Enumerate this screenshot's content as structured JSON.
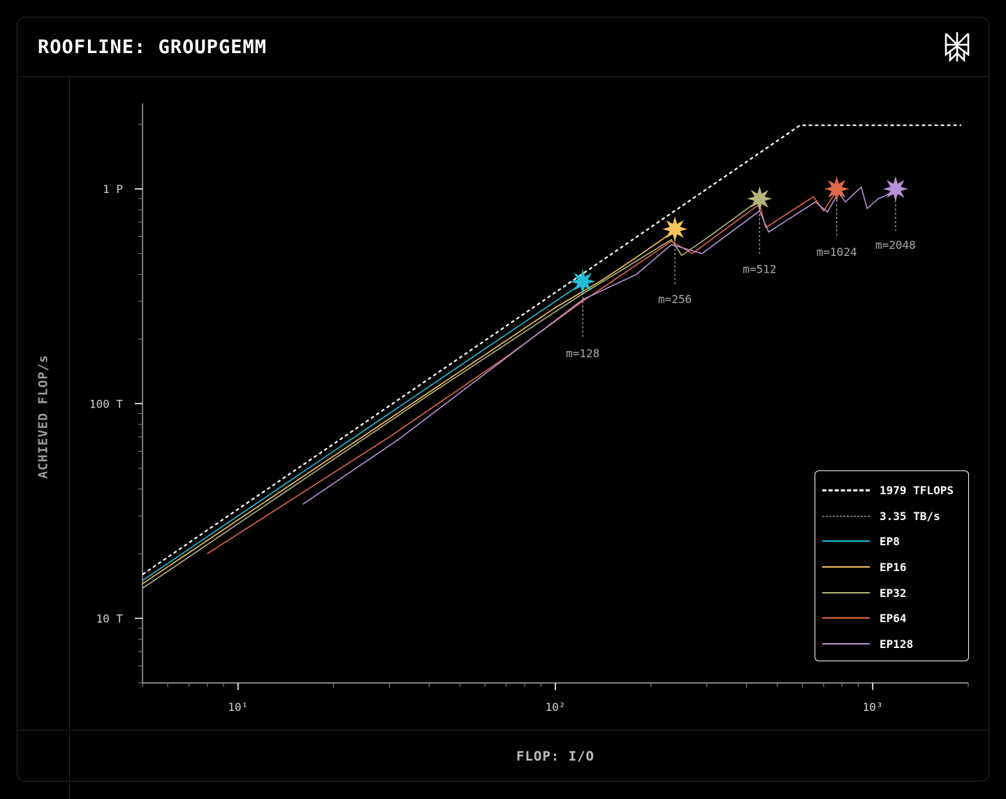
{
  "header": {
    "title": "ROOFLINE: GROUPGEMM",
    "logo_icon": "perplexity-logo-icon"
  },
  "chart_data": {
    "type": "line",
    "xlabel": "FLOP: I/O",
    "ylabel": "ACHIEVED FLOP/s",
    "x_scale": "log",
    "y_scale": "log",
    "xlim": [
      5,
      2000
    ],
    "ylim": [
      5000000000000.0,
      2500000000000000.0
    ],
    "x_ticks": [
      {
        "value": 10,
        "label": "10¹"
      },
      {
        "value": 100,
        "label": "10²"
      },
      {
        "value": 1000,
        "label": "10³"
      }
    ],
    "y_ticks": [
      {
        "value": 10000000000000.0,
        "label": "10 T"
      },
      {
        "value": 100000000000000.0,
        "label": "100 T"
      },
      {
        "value": 1000000000000000.0,
        "label": "1 P"
      }
    ],
    "grid": false,
    "legend_position": "bottom-right",
    "roofline": {
      "peak_compute": {
        "name": "1979 TFLOPS",
        "value": 1979000000000000.0
      },
      "memory_bandwidth": {
        "name": "3.35 TB/s",
        "value": 3350000000000.0
      },
      "points": [
        [
          5,
          16000000000000.0
        ],
        [
          590,
          1979000000000000.0
        ],
        [
          1900,
          1979000000000000.0
        ]
      ]
    },
    "series": [
      {
        "name": "EP8",
        "color": "#22bcd8",
        "points": [
          [
            5,
            15000000000000.0
          ],
          [
            20,
            60000000000000.0
          ],
          [
            60,
            180000000000000.0
          ],
          [
            122,
            365000000000000.0
          ]
        ]
      },
      {
        "name": "EP16",
        "color": "#f5c65b",
        "points": [
          [
            5,
            14500000000000.0
          ],
          [
            30,
            85000000000000.0
          ],
          [
            100,
            280000000000000.0
          ],
          [
            140,
            375000000000000.0
          ],
          [
            180,
            480000000000000.0
          ],
          [
            238,
            640000000000000.0
          ]
        ]
      },
      {
        "name": "EP32",
        "color": "#b5b27c",
        "points": [
          [
            5,
            13800000000000.0
          ],
          [
            40,
            110000000000000.0
          ],
          [
            120,
            320000000000000.0
          ],
          [
            232,
            580000000000000.0
          ],
          [
            250,
            490000000000000.0
          ],
          [
            300,
            590000000000000.0
          ],
          [
            440,
            890000000000000.0
          ]
        ]
      },
      {
        "name": "EP64",
        "color": "#e0674a",
        "points": [
          [
            8,
            20000000000000.0
          ],
          [
            30,
            70000000000000.0
          ],
          [
            70,
            165000000000000.0
          ],
          [
            122,
            300000000000000.0
          ],
          [
            232,
            570000000000000.0
          ],
          [
            270,
            500000000000000.0
          ],
          [
            440,
            850000000000000.0
          ],
          [
            460,
            660000000000000.0
          ],
          [
            650,
            920000000000000.0
          ],
          [
            700,
            790000000000000.0
          ],
          [
            770,
            980000000000000.0
          ]
        ]
      },
      {
        "name": "EP128",
        "color": "#b792d6",
        "points": [
          [
            16,
            34000000000000.0
          ],
          [
            32,
            68000000000000.0
          ],
          [
            122,
            305000000000000.0
          ],
          [
            180,
            400000000000000.0
          ],
          [
            232,
            550000000000000.0
          ],
          [
            290,
            500000000000000.0
          ],
          [
            440,
            790000000000000.0
          ],
          [
            470,
            630000000000000.0
          ],
          [
            660,
            870000000000000.0
          ],
          [
            720,
            780000000000000.0
          ],
          [
            780,
            960000000000000.0
          ],
          [
            820,
            870000000000000.0
          ],
          [
            920,
            1020000000000000.0
          ],
          [
            960,
            810000000000000.0
          ],
          [
            1040,
            900000000000000.0
          ],
          [
            1100,
            930000000000000.0
          ],
          [
            1180,
            1000000000000000.0
          ]
        ]
      }
    ],
    "markers": [
      {
        "label": "m=128",
        "x": 122,
        "y": 370000000000000.0,
        "color": "#22bcd8"
      },
      {
        "label": "m=256",
        "x": 238,
        "y": 650000000000000.0,
        "color": "#f5c65b"
      },
      {
        "label": "m=512",
        "x": 440,
        "y": 900000000000000.0,
        "color": "#b5b27c"
      },
      {
        "label": "m=1024",
        "x": 770,
        "y": 1000000000000000.0,
        "color": "#e0674a"
      },
      {
        "label": "m=2048",
        "x": 1180,
        "y": 1000000000000000.0,
        "color": "#b792d6"
      }
    ]
  }
}
